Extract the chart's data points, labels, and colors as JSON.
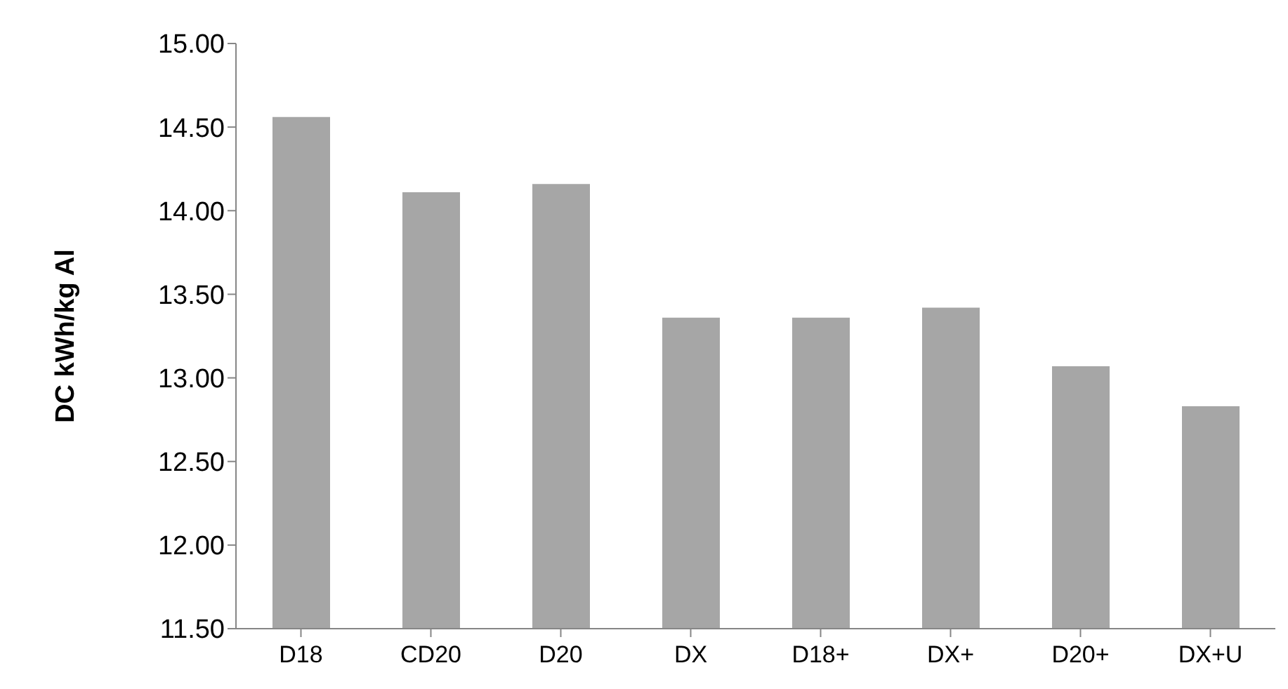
{
  "chart_data": {
    "type": "bar",
    "ylabel": "DC kWh/kg Al",
    "categories": [
      "D18",
      "CD20",
      "D20",
      "DX",
      "D18+",
      "DX+",
      "D20+",
      "DX+U"
    ],
    "values": [
      14.56,
      14.11,
      14.16,
      13.36,
      13.36,
      13.42,
      13.07,
      12.83
    ],
    "color": "#a6a6a6",
    "ylim": [
      11.5,
      15
    ],
    "yticks": [
      {
        "value": 11.5,
        "label": "11.50"
      },
      {
        "value": 12,
        "label": "12.00"
      },
      {
        "value": 12.5,
        "label": "12.50"
      },
      {
        "value": 13,
        "label": "13.00"
      },
      {
        "value": 13.5,
        "label": "13.50"
      },
      {
        "value": 14,
        "label": "14.00"
      },
      {
        "value": 14.5,
        "label": "14.50"
      },
      {
        "value": 15,
        "label": "15.00"
      }
    ],
    "grid": false,
    "legend": false
  }
}
